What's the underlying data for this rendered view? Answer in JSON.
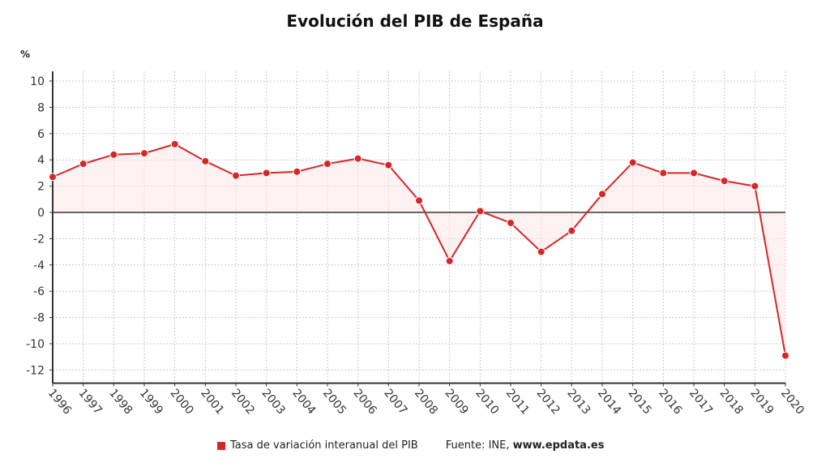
{
  "chart_data": {
    "type": "line",
    "title": "Evolución del PIB de España",
    "ylabel": "%",
    "categories": [
      "1996",
      "1997",
      "1998",
      "1999",
      "2000",
      "2001",
      "2002",
      "2003",
      "2004",
      "2005",
      "2006",
      "2007",
      "2008",
      "2009",
      "2010",
      "2011",
      "2012",
      "2013",
      "2014",
      "2015",
      "2016",
      "2017",
      "2018",
      "2019",
      "2020"
    ],
    "series": [
      {
        "name": "Tasa de variación interanual del PIB",
        "values": [
          2.7,
          3.7,
          4.4,
          4.5,
          5.2,
          3.9,
          2.8,
          3.0,
          3.1,
          3.7,
          4.1,
          3.6,
          0.9,
          -3.7,
          0.1,
          -0.8,
          -3.0,
          -1.4,
          1.4,
          3.8,
          3.0,
          3.0,
          2.4,
          2.0,
          -10.9
        ],
        "color": "#d62728"
      }
    ],
    "yticks": [
      10,
      8,
      6,
      4,
      2,
      0,
      -2,
      -4,
      -6,
      -8,
      -10,
      -12
    ],
    "ylim": [
      -13,
      10.8
    ],
    "grid": true,
    "legend": "bottom"
  },
  "source_label": "Fuente: INE,",
  "source_site": "www.epdata.es"
}
